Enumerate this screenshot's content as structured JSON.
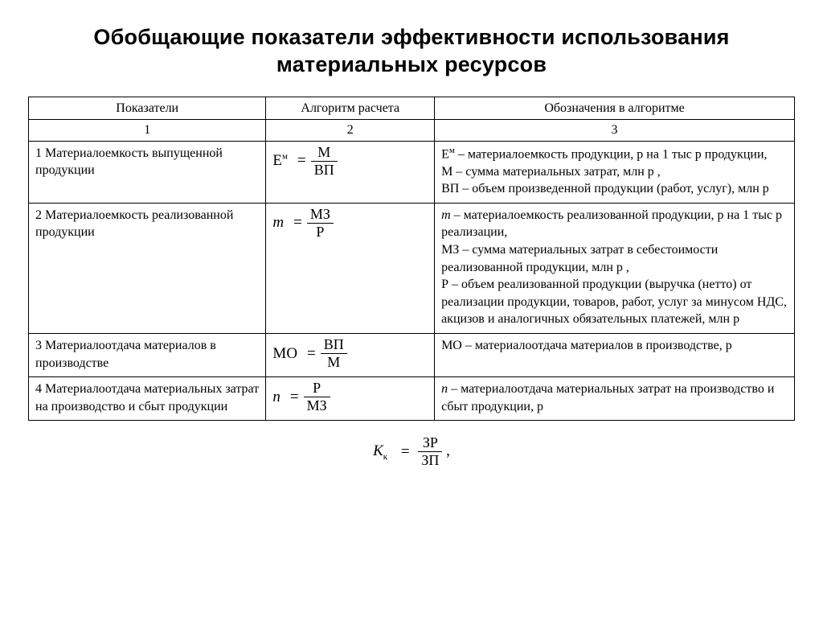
{
  "title": "Обобщающие показатели эффективности использования материальных ресурсов",
  "table": {
    "columns": [
      "Показатели",
      "Алгоритм расчета",
      "Обозначения в алгоритме"
    ],
    "col_nums": [
      "1",
      "2",
      "3"
    ],
    "column_widths_pct": [
      31,
      22,
      47
    ],
    "border_color": "#000000",
    "font_family": "Times New Roman",
    "header_fontsize_pt": 12,
    "cell_fontsize_pt": 12,
    "rows": [
      {
        "indicator": "1  Материалоемкость выпущенной продукции",
        "formula": {
          "lhs_html": "Е<sup class='s'>м</sup>",
          "num": "М",
          "den": "ВП"
        },
        "notation": "Е<sup class='s'>м</sup> – материалоемкость продукции, р на 1 тыс р продукции,<br>М – сумма материальных затрат, млн р ,<br>ВП – объем произведенной продукции (работ, услуг), млн р"
      },
      {
        "indicator": "2  Материалоемкость реализованной продукции",
        "formula": {
          "lhs_html": "<i>m</i>",
          "num": "МЗ",
          "den": "Р"
        },
        "notation": "<i>m</i> – материалоемкость реализованной продукции, р на 1 тыс р реализации,<br>МЗ – сумма материальных затрат в себестоимости реализованной продукции, млн р ,<br>Р – объем реализованной продукции (выручка (нетто) от реализации продукции, товаров, работ, услуг за минусом НДС, акцизов и аналогичных обязательных платежей, млн р"
      },
      {
        "indicator": "3  Материалоотдача материалов в производстве",
        "formula": {
          "lhs_html": "МО",
          "num": "ВП",
          "den": "М"
        },
        "notation": "МО – материалоотдача материалов в производстве, р"
      },
      {
        "indicator": "4  Материалоотдача материальных затрат на производство и сбыт продукции",
        "formula": {
          "lhs_html": "<i>n</i>",
          "num": "Р",
          "den": "МЗ"
        },
        "notation": "<i>n</i> – материалоотдача материальных затрат на производство и сбыт продукции, р"
      }
    ]
  },
  "bottom_formula": {
    "lhs_html": "<i>К</i><sub class='s'>к</sub>",
    "num": "ЗР",
    "den": "ЗП",
    "trailing": ","
  },
  "colors": {
    "background": "#ffffff",
    "text": "#000000",
    "border": "#000000"
  },
  "typography": {
    "title_font_family": "Arial",
    "title_fontsize_pt": 20,
    "title_weight": "900",
    "body_font_family": "Times New Roman"
  }
}
